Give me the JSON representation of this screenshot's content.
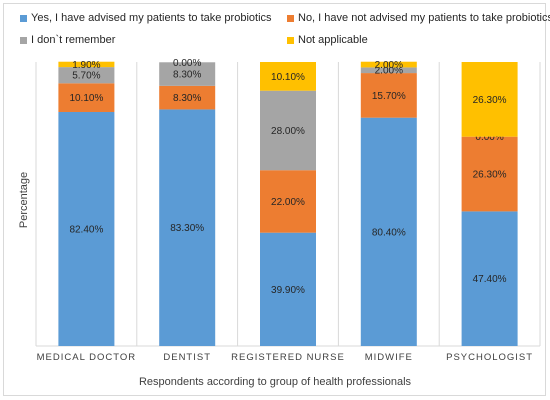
{
  "chart_data": {
    "type": "bar",
    "stacked": true,
    "xlabel": "Respondents according to group of health professionals",
    "ylabel": "Percentage",
    "ylim": [
      0,
      100
    ],
    "grid": true,
    "legend_position": "top",
    "categories": [
      "MEDICAL DOCTOR",
      "DENTIST",
      "REGISTERED NURSE",
      "MIDWIFE",
      "PSYCHOLOGIST"
    ],
    "series": [
      {
        "name": "Yes, I have advised my patients to take probiotics",
        "color": "#5b9bd5",
        "values": [
          82.4,
          83.3,
          39.9,
          80.4,
          47.4
        ],
        "labels": [
          "82.40%",
          "83.30%",
          "39.90%",
          "80.40%",
          "47.40%"
        ]
      },
      {
        "name": "No, I have not advised my patients to take probiotics",
        "color": "#ed7d31",
        "values": [
          10.1,
          8.3,
          22.0,
          15.7,
          26.3
        ],
        "labels": [
          "10.10%",
          "8.30%",
          "22.00%",
          "15.70%",
          "26.30%"
        ]
      },
      {
        "name": "I don`t remember",
        "color": "#a5a5a5",
        "values": [
          5.7,
          8.3,
          28.0,
          2.0,
          0.0
        ],
        "labels": [
          "5.70%",
          "8.30%",
          "28.00%",
          "2.00%",
          "0.00%"
        ]
      },
      {
        "name": "Not applicable",
        "color": "#ffc000",
        "values": [
          1.9,
          0.0,
          10.1,
          2.0,
          26.3
        ],
        "labels": [
          "1.90%",
          "0.00%",
          "10.10%",
          "2.00%",
          "26.30%"
        ]
      }
    ]
  }
}
